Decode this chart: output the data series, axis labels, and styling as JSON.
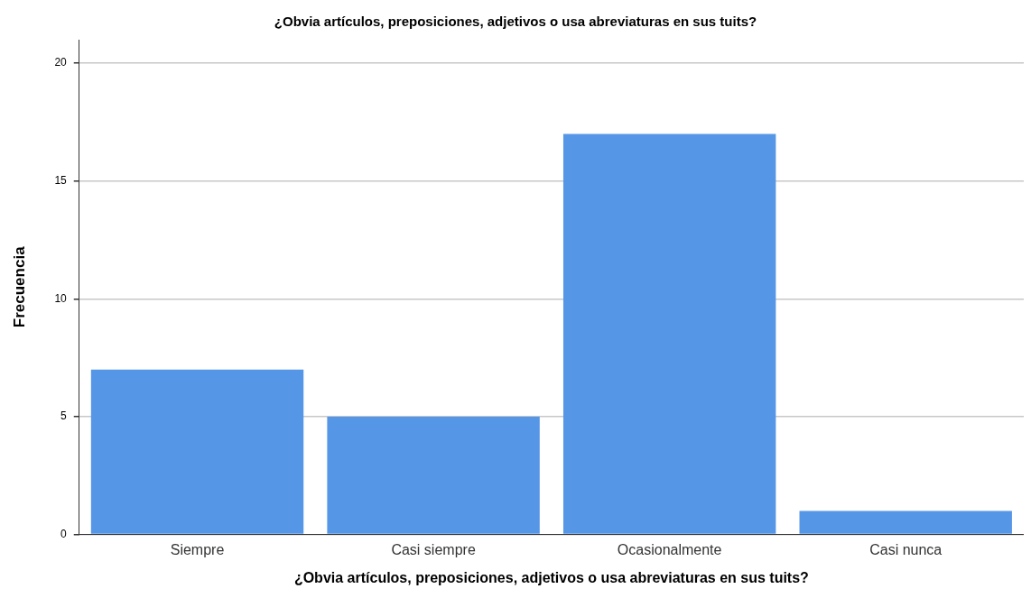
{
  "chart_data": {
    "type": "bar",
    "title": "¿Obvia artículos, preposiciones, adjetivos o usa abreviaturas en sus tuits?",
    "xlabel": "¿Obvia artículos, preposiciones, adjetivos o usa abreviaturas en sus tuits?",
    "ylabel": "Frecuencia",
    "categories": [
      "Siempre",
      "Casi siempre",
      "Ocasionalmente",
      "Casi nunca"
    ],
    "values": [
      7,
      5,
      17,
      1
    ],
    "color": "#5596e6",
    "ylim": [
      0,
      21
    ],
    "yticks": [
      0,
      5,
      10,
      15,
      20
    ],
    "grid": "y",
    "legend": false
  }
}
